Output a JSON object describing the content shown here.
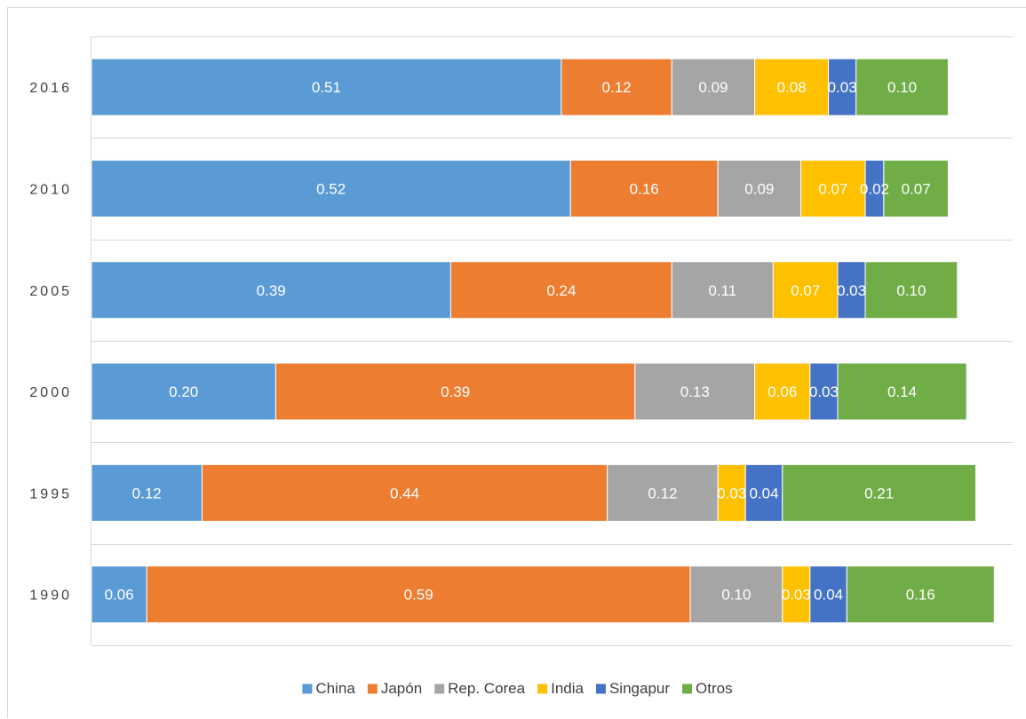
{
  "chart_data": {
    "type": "bar",
    "orientation": "horizontal",
    "stacked": true,
    "categories": [
      "2016",
      "2010",
      "2005",
      "2000",
      "1995",
      "1990"
    ],
    "series": [
      {
        "name": "China",
        "color": "#5b9bd5",
        "values": [
          0.51,
          0.52,
          0.39,
          0.2,
          0.12,
          0.06
        ]
      },
      {
        "name": "Japón",
        "color": "#ed7d31",
        "values": [
          0.12,
          0.16,
          0.24,
          0.39,
          0.44,
          0.59
        ]
      },
      {
        "name": "Rep. Corea",
        "color": "#a5a5a5",
        "values": [
          0.09,
          0.09,
          0.11,
          0.13,
          0.12,
          0.1
        ]
      },
      {
        "name": "India",
        "color": "#ffc000",
        "values": [
          0.08,
          0.07,
          0.07,
          0.06,
          0.03,
          0.03
        ]
      },
      {
        "name": "Singapur",
        "color": "#4472c4",
        "values": [
          0.03,
          0.02,
          0.03,
          0.03,
          0.04,
          0.04
        ]
      },
      {
        "name": "Otros",
        "color": "#70ad47",
        "values": [
          0.1,
          0.07,
          0.1,
          0.14,
          0.21,
          0.16
        ]
      }
    ],
    "value_labels": [
      [
        "0.51",
        "0.52",
        "0.39",
        "0.20",
        "0.12",
        "0.06"
      ],
      [
        "0.12",
        "0.16",
        "0.24",
        "0.39",
        "0.44",
        "0.59"
      ],
      [
        "0.09",
        "0.09",
        "0.11",
        "0.13",
        "0.12",
        "0.10"
      ],
      [
        "0.08",
        "0.07",
        "0.07",
        "0.06",
        "0.03",
        "0.03"
      ],
      [
        "0.03",
        "0.02",
        "0.03",
        "0.03",
        "0.04",
        "0.04"
      ],
      [
        "0.10",
        "0.07",
        "0.10",
        "0.14",
        "0.21",
        "0.16"
      ]
    ],
    "title": "",
    "xlabel": "",
    "ylabel": "",
    "xlim": [
      0,
      1
    ],
    "grid": true,
    "legend_position": "bottom",
    "gridline_color": "#d9d9d9"
  }
}
